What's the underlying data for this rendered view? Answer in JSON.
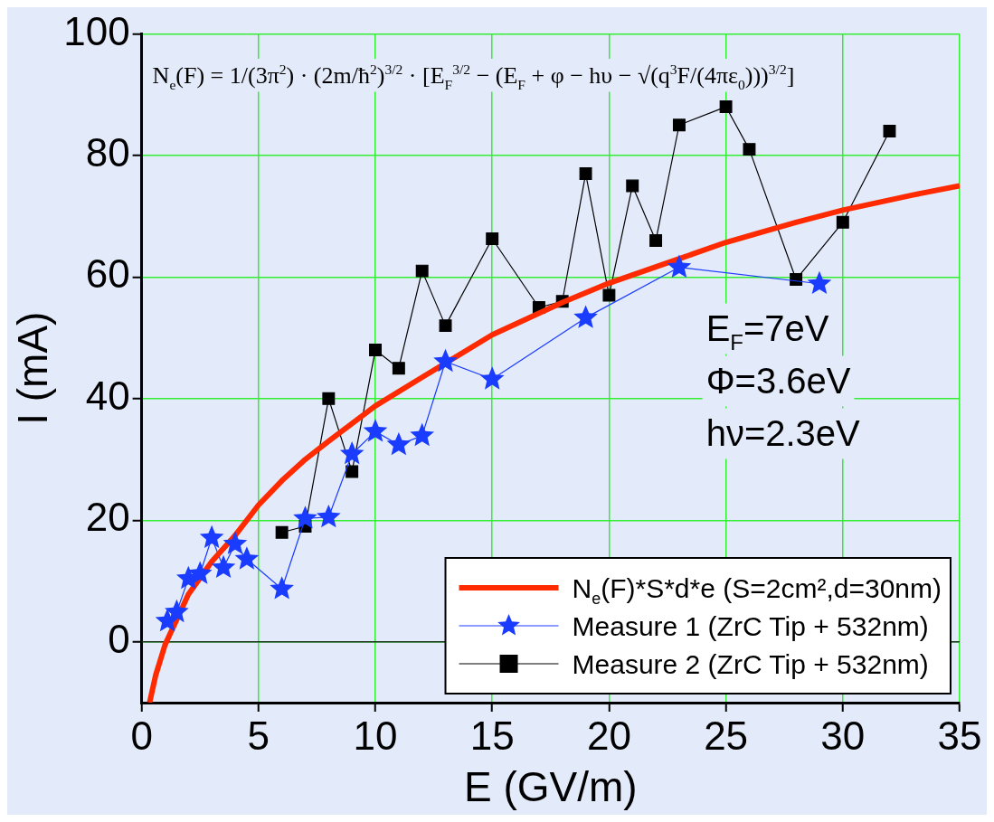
{
  "chart_data": {
    "type": "line",
    "xlabel": "E (GV/m)",
    "ylabel": "I (mA)",
    "xlim": [
      0,
      35
    ],
    "xticks": [
      0,
      5,
      10,
      15,
      20,
      25,
      30,
      35
    ],
    "ylim": [
      -10,
      100
    ],
    "yticks": [
      0,
      20,
      40,
      60,
      80,
      100
    ],
    "grid": true,
    "legend": "bottom right",
    "line_style": "solid",
    "ref_lines": [
      {
        "axis": "y",
        "value": 0,
        "color": "#1a331a"
      }
    ],
    "annotations": [
      "N$_{e}$(F) = 1/(3π$^{2}$) · (2m/ħ$^{2}$)$^{3/2}$ · [E$_{F}$$^{3/2}$ − (E$_{F}$ + φ − hυ − √(q$^{3}$F/(4πε$_{0}$)))$^{3/2}$]",
      "E$_{F}$=7eV",
      "Φ=3.6eV",
      "hν=2.3eV"
    ],
    "series": [
      {
        "name": "N$_{e}$(F)*S*d*e (S=2cm²,d=30nm)",
        "color": "#ff2a00",
        "marker": "none",
        "x": [
          0.34,
          0.6,
          1,
          2,
          2.5,
          3,
          4,
          5,
          6,
          7,
          8,
          10,
          12,
          15,
          18,
          20,
          23,
          25,
          28,
          30,
          33,
          35
        ],
        "values": [
          -10,
          -5.5,
          -0.5,
          7.8,
          10.5,
          13.2,
          17.5,
          22.5,
          26.5,
          30,
          33,
          38.8,
          43.5,
          50.5,
          55.8,
          59,
          63,
          65.7,
          69,
          71,
          73.5,
          75
        ]
      },
      {
        "name": "Measure 1 (ZrC Tip + 532nm)",
        "color": "#1a3cff",
        "marker": "star",
        "x": [
          1.1,
          1.5,
          2,
          2.5,
          3,
          3.5,
          4,
          4.5,
          6,
          7,
          8,
          9,
          10,
          11,
          12,
          13,
          15,
          19,
          23,
          29
        ],
        "values": [
          3.4,
          4.9,
          10.4,
          11.2,
          17.1,
          12.2,
          16.1,
          13.6,
          8.7,
          20.3,
          20.5,
          30.9,
          34.6,
          32.4,
          33.9,
          46.1,
          43.2,
          53.3,
          61.6,
          58.9
        ]
      },
      {
        "name": "Measure 2 (ZrC Tip + 532nm)",
        "color": "#000000",
        "marker": "square",
        "x": [
          6,
          7,
          8,
          9,
          10,
          11,
          12,
          13,
          15,
          17,
          18,
          19,
          20,
          21,
          22,
          23,
          25,
          26,
          28,
          30,
          32
        ],
        "values": [
          18,
          19,
          40,
          28,
          48,
          45,
          61,
          52,
          66.3,
          55,
          56,
          77,
          57,
          75,
          66,
          85,
          88,
          81,
          59.6,
          69,
          84
        ]
      }
    ]
  }
}
